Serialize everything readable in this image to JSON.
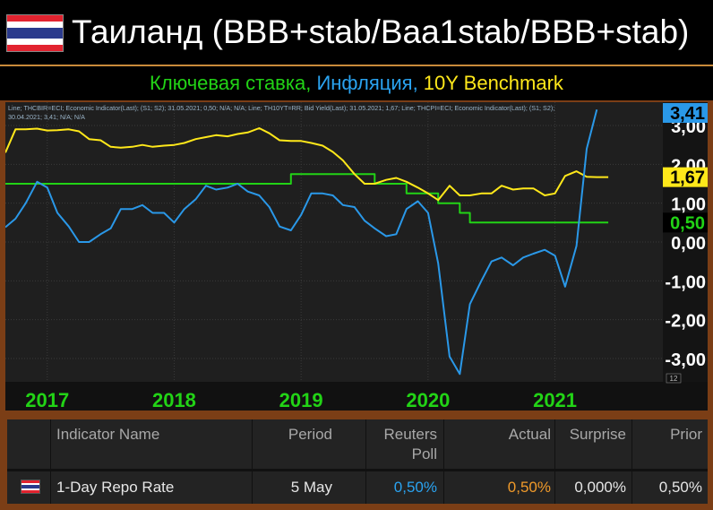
{
  "header": {
    "title": "Таиланд (BBB+stab/Baa1stab/BBB+stab)",
    "flag_colors": [
      "#e2232f",
      "#ffffff",
      "#2a3a8c",
      "#ffffff",
      "#e2232f"
    ]
  },
  "subtitle": {
    "part1": "Ключевая ставка,",
    "part1_color": "#22d316",
    "part2": " Инфляция,",
    "part2_color": "#2aa3f0",
    "part3": " 10Y Benchmark",
    "part3_color": "#ffe81a"
  },
  "chart_data": {
    "type": "line",
    "legend_line1": "Line; THCBIR=ECI; Economic Indicator(Last); (S1; S2); 31.05.2021; 0,50; N/A; N/A; Line; TH10YT=RR; Bid Yield(Last); 31.05.2021; 1,67; Line; THCPI=ECI; Economic Indicator(Last); (S1; S2);",
    "legend_line2": "30.04.2021; 3,41; N/A; N/A",
    "x_ticks": [
      "2017",
      "2018",
      "2019",
      "2020",
      "2021"
    ],
    "y_ticks": [
      "3,00",
      "2,00",
      "1,00",
      "0,00",
      "-1,00",
      "-2,00",
      "-3,00"
    ],
    "ylim": [
      -3.6,
      3.6
    ],
    "xlim": [
      2016.67,
      2021.85
    ],
    "grid": true,
    "axis_badge": "12",
    "series": [
      {
        "name": "THCBIR=ECI",
        "color": "#22d316",
        "last_label": "0,50",
        "last_bg": "#000000",
        "last_fg": "#22d316",
        "x": [
          2016.67,
          2018.92,
          2018.92,
          2019.58,
          2019.58,
          2019.83,
          2019.83,
          2020.08,
          2020.08,
          2020.25,
          2020.25,
          2020.33,
          2020.33,
          2021.42
        ],
        "values": [
          1.5,
          1.5,
          1.75,
          1.75,
          1.5,
          1.5,
          1.25,
          1.25,
          1.0,
          1.0,
          0.75,
          0.75,
          0.5,
          0.5
        ]
      },
      {
        "name": "TH10YT=RR",
        "color": "#ffe81a",
        "last_label": "1,67",
        "last_bg": "#ffe81a",
        "last_fg": "#000000",
        "x": [
          2016.67,
          2016.75,
          2016.83,
          2016.92,
          2017.0,
          2017.08,
          2017.17,
          2017.25,
          2017.33,
          2017.42,
          2017.5,
          2017.58,
          2017.67,
          2017.75,
          2017.83,
          2017.92,
          2018.0,
          2018.08,
          2018.17,
          2018.25,
          2018.33,
          2018.42,
          2018.5,
          2018.58,
          2018.67,
          2018.75,
          2018.83,
          2018.92,
          2019.0,
          2019.08,
          2019.17,
          2019.25,
          2019.33,
          2019.42,
          2019.5,
          2019.58,
          2019.67,
          2019.75,
          2019.83,
          2019.92,
          2020.0,
          2020.08,
          2020.17,
          2020.25,
          2020.33,
          2020.42,
          2020.5,
          2020.58,
          2020.67,
          2020.75,
          2020.83,
          2020.92,
          2021.0,
          2021.08,
          2021.17,
          2021.25,
          2021.33,
          2021.42
        ],
        "values": [
          2.3,
          2.9,
          2.9,
          2.92,
          2.87,
          2.88,
          2.9,
          2.85,
          2.65,
          2.62,
          2.45,
          2.43,
          2.45,
          2.5,
          2.45,
          2.48,
          2.5,
          2.55,
          2.65,
          2.7,
          2.75,
          2.72,
          2.78,
          2.82,
          2.93,
          2.8,
          2.62,
          2.6,
          2.6,
          2.55,
          2.48,
          2.32,
          2.1,
          1.75,
          1.5,
          1.5,
          1.6,
          1.65,
          1.55,
          1.4,
          1.25,
          1.08,
          1.45,
          1.2,
          1.2,
          1.25,
          1.25,
          1.45,
          1.35,
          1.38,
          1.38,
          1.2,
          1.25,
          1.7,
          1.82,
          1.68,
          1.67,
          1.67
        ]
      },
      {
        "name": "THCPI=ECI",
        "color": "#2a98e8",
        "last_label": "3,41",
        "last_bg": "#2a98e8",
        "last_fg": "#000000",
        "x": [
          2016.67,
          2016.75,
          2016.83,
          2016.92,
          2017.0,
          2017.08,
          2017.17,
          2017.25,
          2017.33,
          2017.42,
          2017.5,
          2017.58,
          2017.67,
          2017.75,
          2017.83,
          2017.92,
          2018.0,
          2018.08,
          2018.17,
          2018.25,
          2018.33,
          2018.42,
          2018.5,
          2018.58,
          2018.67,
          2018.75,
          2018.83,
          2018.92,
          2019.0,
          2019.08,
          2019.17,
          2019.25,
          2019.33,
          2019.42,
          2019.5,
          2019.58,
          2019.67,
          2019.75,
          2019.83,
          2019.92,
          2020.0,
          2020.08,
          2020.17,
          2020.25,
          2020.33,
          2020.42,
          2020.5,
          2020.58,
          2020.67,
          2020.75,
          2020.83,
          2020.92,
          2021.0,
          2021.08,
          2021.17,
          2021.25,
          2021.33
        ],
        "values": [
          0.38,
          0.6,
          1.0,
          1.55,
          1.4,
          0.75,
          0.4,
          0.0,
          0.0,
          0.2,
          0.35,
          0.85,
          0.85,
          0.95,
          0.75,
          0.75,
          0.5,
          0.85,
          1.1,
          1.45,
          1.35,
          1.4,
          1.5,
          1.3,
          1.2,
          0.9,
          0.4,
          0.3,
          0.7,
          1.25,
          1.25,
          1.2,
          0.95,
          0.9,
          0.55,
          0.35,
          0.15,
          0.2,
          0.85,
          1.05,
          0.75,
          -0.55,
          -2.95,
          -3.4,
          -1.6,
          -1.0,
          -0.5,
          -0.4,
          -0.6,
          -0.4,
          -0.3,
          -0.2,
          -0.35,
          -1.15,
          -0.1,
          2.4,
          3.41
        ]
      }
    ]
  },
  "table": {
    "headers": [
      "Indicator Name",
      "Period",
      "Reuters",
      "Poll",
      "Actual",
      "Surprise",
      "Prior"
    ],
    "row": {
      "indicator": "1-Day Repo Rate",
      "period": "5 May",
      "poll": "0,50%",
      "poll_color": "#2aa3f0",
      "actual": "0,50%",
      "actual_color": "#f09a2a",
      "surprise": "0,000%",
      "prior": "0,50%"
    }
  }
}
